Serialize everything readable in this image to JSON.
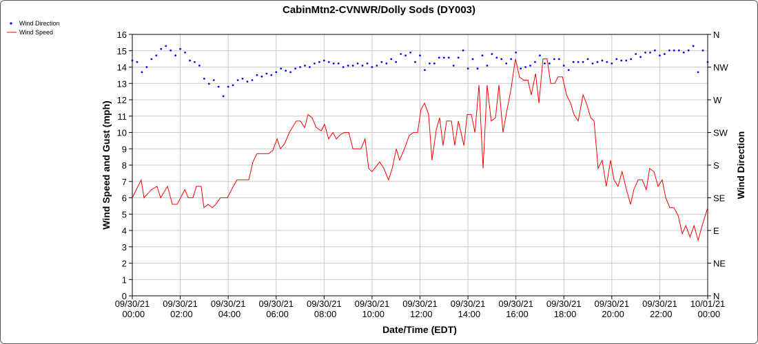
{
  "chart_data": {
    "type": "line",
    "title": "CabinMtn2-CVNWR/Dolly Sods (DY003)",
    "xlabel": "Date/Time (EDT)",
    "ylabel": "Wind Speed and Gust (mph)",
    "y2label": "Wind Direction",
    "xlim": [
      0,
      24
    ],
    "xticks": [
      {
        "value": 0,
        "label": "09/30/21 00:00"
      },
      {
        "value": 2,
        "label": "09/30/21 02:00"
      },
      {
        "value": 4,
        "label": "09/30/21 04:00"
      },
      {
        "value": 6,
        "label": "09/30/21 06:00"
      },
      {
        "value": 8,
        "label": "09/30/21 08:00"
      },
      {
        "value": 10,
        "label": "09/30/21 10:00"
      },
      {
        "value": 12,
        "label": "09/30/21 12:00"
      },
      {
        "value": 14,
        "label": "09/30/21 14:00"
      },
      {
        "value": 16,
        "label": "09/30/21 16:00"
      },
      {
        "value": 18,
        "label": "09/30/21 18:00"
      },
      {
        "value": 20,
        "label": "09/30/21 20:00"
      },
      {
        "value": 22,
        "label": "09/30/21 22:00"
      },
      {
        "value": 24,
        "label": "10/01/21 00:00"
      }
    ],
    "ylim": [
      0,
      16
    ],
    "yticks": [
      0,
      1,
      2,
      3,
      4,
      5,
      6,
      7,
      8,
      9,
      10,
      11,
      12,
      13,
      14,
      15,
      16
    ],
    "y2lim": [
      0,
      360
    ],
    "y2ticks": [
      {
        "value": 0,
        "label": "N"
      },
      {
        "value": 45,
        "label": "NE"
      },
      {
        "value": 90,
        "label": "E"
      },
      {
        "value": 135,
        "label": "SE"
      },
      {
        "value": 180,
        "label": "S"
      },
      {
        "value": 225,
        "label": "SW"
      },
      {
        "value": 270,
        "label": "W"
      },
      {
        "value": 315,
        "label": "NW"
      },
      {
        "value": 360,
        "label": "N"
      }
    ],
    "grid": true,
    "legend": "top-left",
    "series": [
      {
        "name": "Wind Direction",
        "type": "scatter",
        "axis": "y2",
        "color": "#0000ff",
        "x": [
          0,
          0.2,
          0.4,
          0.6,
          0.8,
          1,
          1.2,
          1.4,
          1.6,
          1.8,
          2,
          2.2,
          2.4,
          2.6,
          2.8,
          3,
          3.2,
          3.4,
          3.6,
          3.8,
          4,
          4.2,
          4.4,
          4.6,
          4.8,
          5,
          5.2,
          5.4,
          5.6,
          5.8,
          6,
          6.2,
          6.4,
          6.6,
          6.8,
          7,
          7.2,
          7.4,
          7.6,
          7.8,
          8,
          8.2,
          8.4,
          8.6,
          8.8,
          9,
          9.2,
          9.4,
          9.6,
          9.8,
          10,
          10.2,
          10.4,
          10.6,
          10.8,
          11,
          11.2,
          11.4,
          11.6,
          11.8,
          12,
          12.2,
          12.4,
          12.6,
          12.8,
          13,
          13.2,
          13.4,
          13.6,
          13.8,
          14,
          14.2,
          14.4,
          14.6,
          14.8,
          15,
          15.2,
          15.4,
          15.6,
          15.8,
          16,
          16.2,
          16.4,
          16.6,
          16.8,
          17,
          17.2,
          17.4,
          17.6,
          17.8,
          18,
          18.2,
          18.4,
          18.6,
          18.8,
          19,
          19.2,
          19.4,
          19.6,
          19.8,
          20,
          20.2,
          20.4,
          20.6,
          20.8,
          21,
          21.2,
          21.4,
          21.6,
          21.8,
          22,
          22.2,
          22.4,
          22.6,
          22.8,
          23,
          23.2,
          23.4,
          23.6,
          23.8,
          24
        ],
        "values": [
          324,
          322,
          308,
          315,
          326,
          331,
          340,
          344,
          338,
          331,
          340,
          335,
          324,
          322,
          317,
          299,
          292,
          297,
          288,
          275,
          288,
          290,
          297,
          299,
          295,
          297,
          304,
          302,
          306,
          304,
          308,
          313,
          310,
          308,
          313,
          315,
          317,
          315,
          320,
          322,
          324,
          322,
          320,
          320,
          315,
          317,
          317,
          320,
          317,
          320,
          315,
          317,
          322,
          320,
          326,
          322,
          333,
          331,
          335,
          322,
          331,
          311,
          320,
          320,
          328,
          328,
          328,
          317,
          328,
          338,
          313,
          326,
          313,
          331,
          317,
          333,
          328,
          326,
          320,
          326,
          335,
          313,
          315,
          317,
          322,
          331,
          320,
          320,
          326,
          326,
          317,
          311,
          322,
          322,
          322,
          326,
          320,
          322,
          324,
          322,
          320,
          326,
          324,
          324,
          326,
          333,
          329,
          335,
          335,
          338,
          331,
          333,
          338,
          338,
          338,
          335,
          338,
          344,
          308,
          338,
          322
        ]
      },
      {
        "name": "Wind Speed",
        "axis": "y",
        "color": "#ff0000",
        "x": [
          0,
          0.37,
          0.49,
          0.8,
          1.03,
          1.18,
          1.47,
          1.67,
          1.87,
          2.19,
          2.33,
          2.53,
          2.67,
          2.87,
          2.99,
          3.16,
          3.33,
          3.48,
          3.68,
          3.97,
          4.14,
          4.37,
          4.86,
          5.03,
          5.2,
          5.69,
          5.86,
          6.04,
          6.18,
          6.35,
          6.55,
          6.84,
          7.01,
          7.19,
          7.33,
          7.5,
          7.67,
          7.88,
          8.02,
          8.19,
          8.37,
          8.51,
          8.71,
          8.86,
          9.03,
          9.2,
          9.54,
          9.71,
          9.86,
          10,
          10.32,
          10.49,
          10.69,
          10.84,
          11.01,
          11.15,
          11.35,
          11.55,
          11.73,
          11.9,
          12.04,
          12.19,
          12.36,
          12.5,
          12.68,
          12.82,
          12.96,
          13.11,
          13.31,
          13.45,
          13.6,
          13.83,
          13.97,
          14.14,
          14.29,
          14.46,
          14.63,
          14.8,
          14.97,
          15.15,
          15.29,
          15.46,
          15.63,
          15.78,
          15.98,
          16.15,
          16.32,
          16.5,
          16.64,
          16.82,
          16.96,
          17.13,
          17.3,
          17.45,
          17.62,
          17.76,
          17.94,
          18.11,
          18.28,
          18.42,
          18.6,
          18.8,
          18.94,
          19.12,
          19.26,
          19.43,
          19.6,
          19.77,
          19.95,
          20.09,
          20.26,
          20.43,
          20.61,
          20.78,
          20.92,
          21.1,
          21.27,
          21.44,
          21.58,
          21.76,
          21.93,
          22.1,
          22.25,
          22.42,
          22.59,
          22.77,
          22.94,
          23.09,
          23.26,
          23.43,
          23.6,
          23.77,
          24
        ],
        "values": [
          6.0,
          7.1,
          6.0,
          6.5,
          6.7,
          6.0,
          6.7,
          5.6,
          5.6,
          6.5,
          6.0,
          6.0,
          6.7,
          6.7,
          5.4,
          5.6,
          5.4,
          5.6,
          6.0,
          6.0,
          6.5,
          7.1,
          7.1,
          8.2,
          8.7,
          8.7,
          8.9,
          9.6,
          9.0,
          9.3,
          10.0,
          10.7,
          10.7,
          10.3,
          11.1,
          10.9,
          10.3,
          10.1,
          10.5,
          9.6,
          10.0,
          9.6,
          9.9,
          10.0,
          10.0,
          9.0,
          9.0,
          9.6,
          7.8,
          7.6,
          8.2,
          7.8,
          7.1,
          7.8,
          9.0,
          8.3,
          9.0,
          9.8,
          10.0,
          10.0,
          11.4,
          11.8,
          11.1,
          8.3,
          10.2,
          10.9,
          9.2,
          10.7,
          10.7,
          9.2,
          10.7,
          9.2,
          11.1,
          11.1,
          10.0,
          12.9,
          7.8,
          12.9,
          10.7,
          10.9,
          12.9,
          10.0,
          11.4,
          12.5,
          14.5,
          13.4,
          13.2,
          13.2,
          12.3,
          13.6,
          11.8,
          14.5,
          14.5,
          13.0,
          13.0,
          13.4,
          13.4,
          12.3,
          11.8,
          11.1,
          10.7,
          12.3,
          11.8,
          10.9,
          10.7,
          7.8,
          8.3,
          6.7,
          8.3,
          7.1,
          6.7,
          7.6,
          6.5,
          5.6,
          6.5,
          7.1,
          7.1,
          6.5,
          7.8,
          7.6,
          6.7,
          7.1,
          6.0,
          5.4,
          5.4,
          4.9,
          3.8,
          4.3,
          3.6,
          4.3,
          3.4,
          4.3,
          5.4
        ]
      }
    ]
  }
}
